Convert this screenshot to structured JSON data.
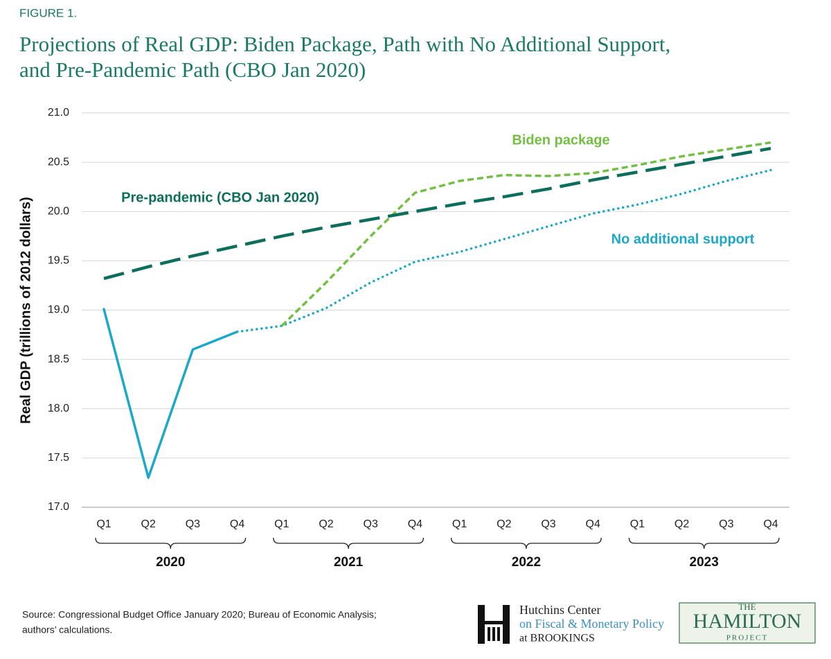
{
  "chart_data": {
    "type": "line",
    "figure_label": "FIGURE 1.",
    "title": [
      "Projections of Real GDP: Biden Package, Path with No Additional Support,",
      "and Pre-Pandemic Path (CBO Jan 2020)"
    ],
    "y_label": "Real GDP (trillions of 2012 dollars)",
    "categories": [
      "Q1",
      "Q2",
      "Q3",
      "Q4",
      "Q1",
      "Q2",
      "Q3",
      "Q4",
      "Q1",
      "Q2",
      "Q3",
      "Q4",
      "Q1",
      "Q2",
      "Q3",
      "Q4"
    ],
    "year_groups": [
      "2020",
      "2021",
      "2022",
      "2023"
    ],
    "ylim": [
      17,
      21
    ],
    "yticks": [
      {
        "value": 17,
        "label": "17.0"
      },
      17.5,
      {
        "value": 18,
        "label": "18.0"
      },
      18.5,
      {
        "value": 19,
        "label": "19.0"
      },
      19.5,
      {
        "value": 20,
        "label": "20.0"
      },
      20.5,
      {
        "value": 21,
        "label": "21.0"
      }
    ],
    "grid": true,
    "series": [
      {
        "color": "#1ba8c9",
        "style": "solid",
        "values": [
          19.01,
          17.3,
          18.6,
          18.78,
          null,
          null,
          null,
          null,
          null,
          null,
          null,
          null,
          null,
          null,
          null,
          null
        ]
      },
      {
        "name": "No additional support",
        "color": "#1ba8c9",
        "style": "dotted",
        "values": [
          null,
          null,
          null,
          18.78,
          18.84,
          19.02,
          19.28,
          19.49,
          19.59,
          19.72,
          19.85,
          19.98,
          20.07,
          20.18,
          20.31,
          20.42
        ]
      },
      {
        "name": "Biden package",
        "color": "#72bf44",
        "style": "dashed",
        "values": [
          null,
          null,
          null,
          null,
          18.84,
          19.28,
          19.75,
          20.19,
          20.31,
          20.37,
          20.36,
          20.39,
          20.47,
          20.56,
          20.63,
          20.7
        ]
      },
      {
        "name": "Pre-pandemic (CBO Jan 2020)",
        "color": "#0e6e5c",
        "style": "longdash",
        "values": [
          19.32,
          19.44,
          19.55,
          19.65,
          19.75,
          19.84,
          19.92,
          20.0,
          20.08,
          20.15,
          20.23,
          20.32,
          20.4,
          20.48,
          20.56,
          20.64
        ]
      }
    ],
    "source": [
      "Source: Congressional Budget Office January 2020; Bureau of Economic Analysis;",
      "authors’ calculations."
    ]
  },
  "logos": {
    "hutchins": [
      "Hutchins Center",
      "on Fiscal & Monetary Policy",
      "at BROOKINGS"
    ],
    "hamilton": [
      "THE",
      "HAMILTON",
      "PROJECT"
    ]
  }
}
